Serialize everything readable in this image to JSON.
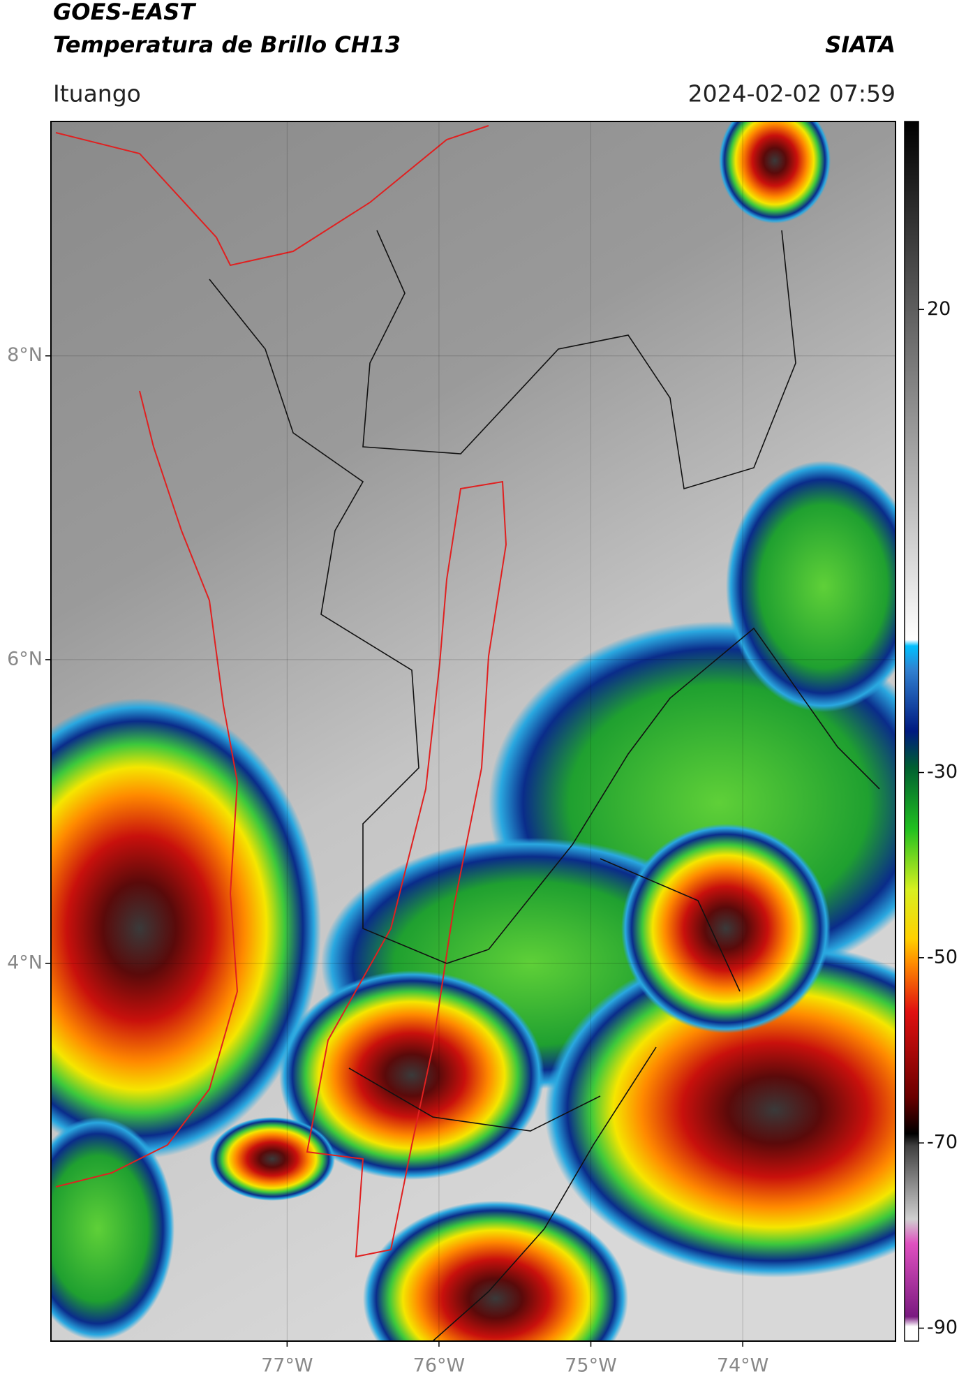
{
  "chart_data": {
    "type": "map",
    "title": "GOES-EAST",
    "subtitle": "Temperatura de Brillo CH13",
    "source": "SIATA",
    "location": "Ituango",
    "datetime": "2024-02-02 07:59",
    "xlim": [
      -78.555,
      -72.994
    ],
    "ylim": [
      1.514,
      9.543
    ],
    "xticks": [
      {
        "value": -77,
        "label": "77°W"
      },
      {
        "value": -76,
        "label": "76°W"
      },
      {
        "value": -75,
        "label": "75°W"
      },
      {
        "value": -74,
        "label": "74°W"
      }
    ],
    "yticks": [
      {
        "value": 8,
        "label": "8°N"
      },
      {
        "value": 6,
        "label": "6°N"
      },
      {
        "value": 4,
        "label": "4°N"
      }
    ],
    "grid": true,
    "colorbar": {
      "lim": [
        -91.4,
        40.3
      ],
      "ticks": [
        20,
        -30,
        -50,
        -70,
        -90
      ]
    }
  }
}
